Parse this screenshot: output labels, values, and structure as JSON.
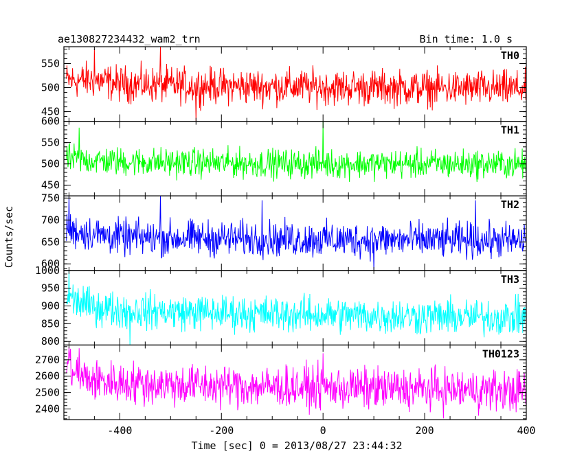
{
  "chart_data": {
    "type": "line",
    "title": "ae130827234432_wam2_trn",
    "subtitle": "Bin time: 1.0 s",
    "xlabel": "Time [sec] 0 = 2013/08/27 23:44:32",
    "ylabel": "Counts/sec",
    "xlim": [
      -510,
      400
    ],
    "xticks": [
      -400,
      -200,
      0,
      200,
      400
    ],
    "grid": false,
    "series": [
      {
        "name": "TH0",
        "color": "#ff0000",
        "ylim": [
          430,
          585
        ],
        "yticks": [
          450,
          500,
          550
        ],
        "trend": [
          [
            -505,
            515
          ],
          [
            -450,
            515
          ],
          [
            -400,
            508
          ],
          [
            -300,
            505
          ],
          [
            -200,
            503
          ],
          [
            0,
            501
          ],
          [
            200,
            499
          ],
          [
            400,
            497
          ]
        ],
        "noise": 55,
        "spikes": [
          [
            -320,
            585
          ],
          [
            -450,
            580
          ],
          [
            -250,
            430
          ]
        ]
      },
      {
        "name": "TH1",
        "color": "#00ff00",
        "ylim": [
          425,
          600
        ],
        "yticks": [
          450,
          500,
          550,
          600
        ],
        "trend": [
          [
            -505,
            512
          ],
          [
            -450,
            508
          ],
          [
            -400,
            505
          ],
          [
            -200,
            502
          ],
          [
            0,
            500
          ],
          [
            200,
            500
          ],
          [
            400,
            499
          ]
        ],
        "noise": 50,
        "spikes": [
          [
            0,
            600
          ],
          [
            -480,
            585
          ]
        ]
      },
      {
        "name": "TH2",
        "color": "#0000ff",
        "ylim": [
          585,
          755
        ],
        "yticks": [
          600,
          650,
          700,
          750
        ],
        "trend": [
          [
            -505,
            678
          ],
          [
            -450,
            668
          ],
          [
            -400,
            660
          ],
          [
            -200,
            658
          ],
          [
            0,
            655
          ],
          [
            200,
            654
          ],
          [
            400,
            652
          ]
        ],
        "noise": 60,
        "spikes": [
          [
            -500,
            755
          ],
          [
            -320,
            755
          ],
          [
            -120,
            745
          ],
          [
            300,
            745
          ],
          [
            100,
            585
          ]
        ]
      },
      {
        "name": "TH3",
        "color": "#00ffff",
        "ylim": [
          790,
          1000
        ],
        "yticks": [
          800,
          850,
          900,
          950,
          1000
        ],
        "trend": [
          [
            -505,
            925
          ],
          [
            -460,
            900
          ],
          [
            -400,
            888
          ],
          [
            -200,
            880
          ],
          [
            0,
            875
          ],
          [
            200,
            870
          ],
          [
            400,
            868
          ]
        ],
        "noise": 75,
        "spikes": [
          [
            -500,
            1000
          ],
          [
            -380,
            790
          ]
        ]
      },
      {
        "name": "TH0123",
        "color": "#ff00ff",
        "ylim": [
          2335,
          2790
        ],
        "yticks": [
          2400,
          2500,
          2600,
          2700
        ],
        "trend": [
          [
            -505,
            2680
          ],
          [
            -480,
            2600
          ],
          [
            -450,
            2575
          ],
          [
            -400,
            2560
          ],
          [
            -200,
            2540
          ],
          [
            0,
            2530
          ],
          [
            200,
            2520
          ],
          [
            400,
            2510
          ]
        ],
        "noise": 190,
        "spikes": [
          [
            -500,
            2780
          ],
          [
            -480,
            2770
          ],
          [
            0,
            2740
          ]
        ]
      }
    ]
  }
}
